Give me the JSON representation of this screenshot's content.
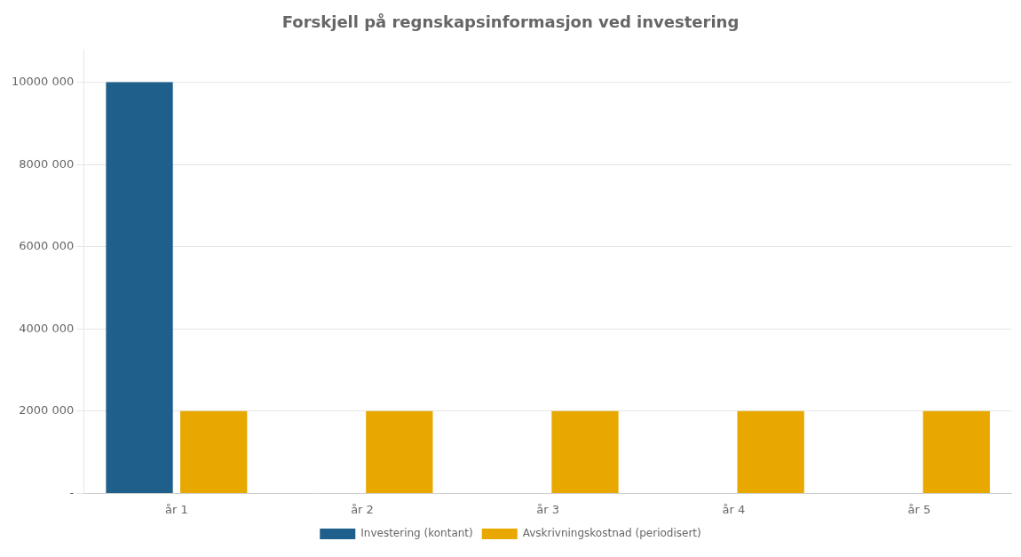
{
  "chart_data": {
    "type": "bar",
    "title": "Forskjell på regnskapsinformasjon ved investering",
    "categories": [
      "år 1",
      "år 2",
      "år 3",
      "år 4",
      "år 5"
    ],
    "series": [
      {
        "name": "Investering (kontant)",
        "color": "#1F5F8B",
        "values": [
          10000000,
          0,
          0,
          0,
          0
        ]
      },
      {
        "name": "Avskrivningskostnad (periodisert)",
        "color": "#E8A800",
        "values": [
          2000000,
          2000000,
          2000000,
          2000000,
          2000000
        ]
      }
    ],
    "ylim": [
      0,
      10800000
    ],
    "yticks": [
      {
        "value": 0,
        "label": "-"
      },
      {
        "value": 2000000,
        "label": "2000 000"
      },
      {
        "value": 4000000,
        "label": "4000 000"
      },
      {
        "value": 6000000,
        "label": "6000 000"
      },
      {
        "value": 8000000,
        "label": "8000 000"
      },
      {
        "value": 10000000,
        "label": "10000 000"
      }
    ],
    "grid": true,
    "legend": "bottom"
  }
}
